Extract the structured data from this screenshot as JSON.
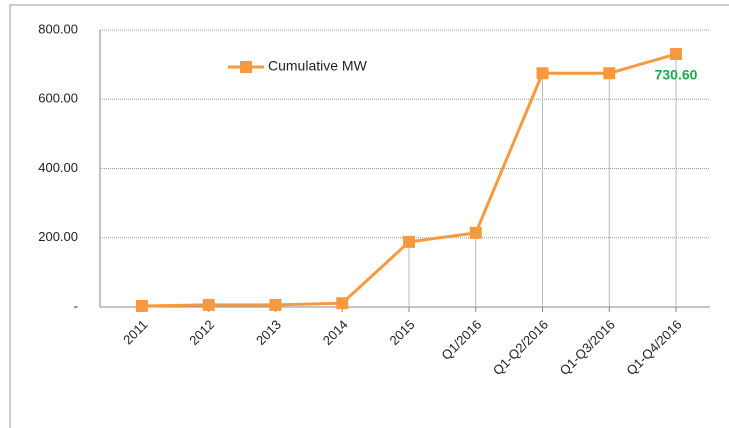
{
  "chart_data": {
    "type": "line",
    "categories": [
      "2011",
      "2012",
      "2013",
      "2014",
      "2015",
      "Q1/2016",
      "Q1-Q2/2016",
      "Q1-Q3/2016",
      "Q1-Q4/2016"
    ],
    "series": [
      {
        "name": "Cumulative MW",
        "color": "#f79a3e",
        "values": [
          3,
          6,
          6,
          11,
          188,
          214,
          675,
          675,
          730.6
        ],
        "value_labels": [
          null,
          null,
          null,
          null,
          null,
          null,
          null,
          null,
          "730.60"
        ]
      }
    ],
    "ylim": [
      0,
      800
    ],
    "yticks": [
      {
        "value": 0,
        "label": "-"
      },
      {
        "value": 200,
        "label": "200.00"
      },
      {
        "value": 400,
        "label": "400.00"
      },
      {
        "value": 600,
        "label": "600.00"
      },
      {
        "value": 800,
        "label": "800.00"
      }
    ],
    "grid": true,
    "legend": "top-left"
  }
}
